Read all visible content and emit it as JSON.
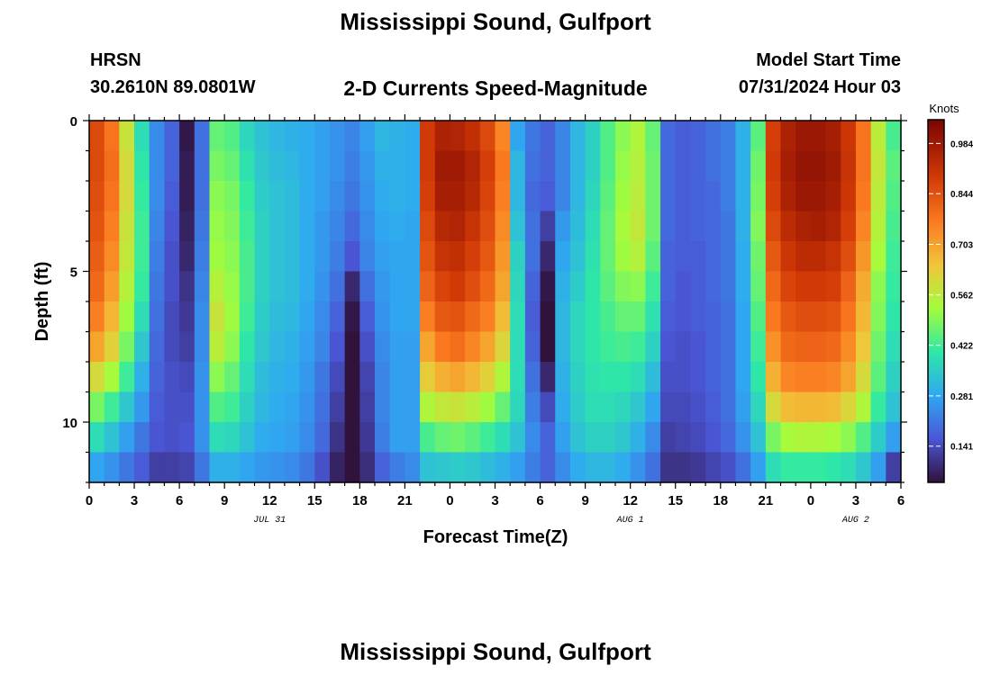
{
  "header": {
    "title": "Mississippi Sound, Gulfport",
    "station": "HRSN",
    "location": "30.2610N  89.0801W",
    "subtitle": "2-D Currents Speed-Magnitude",
    "model_label": "Model Start Time",
    "model_time": "07/31/2024 Hour 03"
  },
  "footer": {
    "title": "Mississippi Sound, Gulfport"
  },
  "chart_data": {
    "type": "heatmap",
    "xlabel": "Forecast Time(Z)",
    "ylabel": "Depth (ft)",
    "x_tick_labels": [
      "0",
      "3",
      "6",
      "9",
      "12",
      "15",
      "18",
      "21",
      "0",
      "3",
      "6",
      "9",
      "12",
      "15",
      "18",
      "21",
      "0",
      "3",
      "6"
    ],
    "x_hours": [
      0,
      54
    ],
    "date_labels": [
      {
        "label": "JUL 31",
        "hour": 12
      },
      {
        "label": "AUG 1",
        "hour": 36
      },
      {
        "label": "AUG 2",
        "hour": 51
      }
    ],
    "y_tick_labels": [
      "0",
      "5",
      "10"
    ],
    "ylim": [
      0,
      12
    ],
    "colorbar": {
      "unit": "Knots",
      "range": [
        0.04,
        1.05
      ],
      "ticks": [
        "0.141",
        "0.281",
        "0.422",
        "0.562",
        "0.703",
        "0.844",
        "0.984"
      ]
    },
    "depths_ft": [
      0.5,
      1.5,
      2.5,
      3.5,
      4.5,
      5.5,
      6.5,
      7.5,
      8.5,
      9.5,
      10.5,
      11.5
    ],
    "time_hours": [
      0.5,
      1.5,
      2.5,
      3.5,
      4.5,
      5.5,
      6.5,
      7.5,
      8.5,
      9.5,
      10.5,
      11.5,
      12.5,
      13.5,
      14.5,
      15.5,
      16.5,
      17.5,
      18.5,
      19.5,
      20.5,
      21.5,
      22.5,
      23.5,
      24.5,
      25.5,
      26.5,
      27.5,
      28.5,
      29.5,
      30.5,
      31.5,
      32.5,
      33.5,
      34.5,
      35.5,
      36.5,
      37.5,
      38.5,
      39.5,
      40.5,
      41.5,
      42.5,
      43.5,
      44.5,
      45.5,
      46.5,
      47.5,
      48.5,
      49.5,
      50.5,
      51.5,
      52.5,
      53.5
    ],
    "speed_knots_by_depth": [
      [
        0.86,
        0.78,
        0.58,
        0.38,
        0.24,
        0.18,
        0.05,
        0.2,
        0.46,
        0.44,
        0.37,
        0.33,
        0.31,
        0.3,
        0.29,
        0.27,
        0.25,
        0.23,
        0.27,
        0.31,
        0.3,
        0.29,
        0.89,
        0.96,
        0.95,
        0.92,
        0.86,
        0.75,
        0.28,
        0.21,
        0.18,
        0.23,
        0.31,
        0.36,
        0.44,
        0.5,
        0.54,
        0.46,
        0.19,
        0.17,
        0.18,
        0.2,
        0.22,
        0.3,
        0.45,
        0.88,
        0.96,
        0.99,
        0.99,
        0.97,
        0.9,
        0.78,
        0.56,
        0.43
      ],
      [
        0.86,
        0.79,
        0.6,
        0.4,
        0.24,
        0.18,
        0.06,
        0.2,
        0.48,
        0.46,
        0.39,
        0.34,
        0.32,
        0.31,
        0.29,
        0.27,
        0.25,
        0.22,
        0.26,
        0.3,
        0.3,
        0.29,
        0.89,
        0.98,
        0.98,
        0.95,
        0.88,
        0.77,
        0.31,
        0.2,
        0.18,
        0.23,
        0.31,
        0.36,
        0.44,
        0.51,
        0.55,
        0.47,
        0.19,
        0.17,
        0.18,
        0.2,
        0.22,
        0.3,
        0.47,
        0.89,
        0.97,
        1.0,
        1.0,
        0.98,
        0.91,
        0.78,
        0.57,
        0.45
      ],
      [
        0.85,
        0.78,
        0.6,
        0.41,
        0.24,
        0.17,
        0.06,
        0.2,
        0.5,
        0.48,
        0.41,
        0.35,
        0.33,
        0.32,
        0.29,
        0.27,
        0.24,
        0.21,
        0.25,
        0.29,
        0.3,
        0.29,
        0.88,
        0.97,
        0.97,
        0.94,
        0.87,
        0.76,
        0.31,
        0.19,
        0.17,
        0.23,
        0.31,
        0.37,
        0.45,
        0.52,
        0.56,
        0.47,
        0.19,
        0.17,
        0.18,
        0.19,
        0.22,
        0.3,
        0.48,
        0.88,
        0.96,
        0.99,
        0.99,
        0.97,
        0.9,
        0.77,
        0.56,
        0.44
      ],
      [
        0.84,
        0.76,
        0.58,
        0.42,
        0.23,
        0.16,
        0.07,
        0.21,
        0.51,
        0.49,
        0.42,
        0.36,
        0.33,
        0.32,
        0.29,
        0.26,
        0.23,
        0.19,
        0.24,
        0.28,
        0.29,
        0.28,
        0.86,
        0.94,
        0.95,
        0.91,
        0.85,
        0.74,
        0.33,
        0.2,
        0.12,
        0.26,
        0.32,
        0.38,
        0.46,
        0.53,
        0.57,
        0.47,
        0.19,
        0.17,
        0.18,
        0.19,
        0.21,
        0.3,
        0.49,
        0.86,
        0.93,
        0.96,
        0.97,
        0.95,
        0.88,
        0.75,
        0.55,
        0.43
      ],
      [
        0.82,
        0.74,
        0.57,
        0.42,
        0.22,
        0.15,
        0.08,
        0.22,
        0.52,
        0.5,
        0.43,
        0.36,
        0.33,
        0.32,
        0.29,
        0.26,
        0.22,
        0.16,
        0.23,
        0.27,
        0.28,
        0.28,
        0.84,
        0.91,
        0.92,
        0.88,
        0.83,
        0.72,
        0.36,
        0.2,
        0.08,
        0.28,
        0.33,
        0.39,
        0.46,
        0.52,
        0.55,
        0.45,
        0.18,
        0.17,
        0.17,
        0.19,
        0.21,
        0.29,
        0.47,
        0.83,
        0.9,
        0.93,
        0.93,
        0.91,
        0.85,
        0.72,
        0.53,
        0.42
      ],
      [
        0.8,
        0.71,
        0.55,
        0.41,
        0.21,
        0.15,
        0.1,
        0.23,
        0.55,
        0.51,
        0.43,
        0.36,
        0.33,
        0.32,
        0.29,
        0.25,
        0.2,
        0.08,
        0.2,
        0.26,
        0.28,
        0.28,
        0.81,
        0.87,
        0.89,
        0.85,
        0.8,
        0.7,
        0.37,
        0.18,
        0.05,
        0.3,
        0.35,
        0.4,
        0.45,
        0.49,
        0.5,
        0.42,
        0.18,
        0.16,
        0.17,
        0.19,
        0.21,
        0.29,
        0.46,
        0.8,
        0.87,
        0.89,
        0.89,
        0.88,
        0.81,
        0.69,
        0.5,
        0.41
      ],
      [
        0.76,
        0.67,
        0.52,
        0.38,
        0.2,
        0.14,
        0.11,
        0.24,
        0.58,
        0.52,
        0.42,
        0.35,
        0.32,
        0.31,
        0.28,
        0.24,
        0.18,
        0.05,
        0.17,
        0.25,
        0.28,
        0.28,
        0.76,
        0.83,
        0.84,
        0.8,
        0.76,
        0.66,
        0.38,
        0.17,
        0.03,
        0.31,
        0.37,
        0.4,
        0.43,
        0.46,
        0.46,
        0.39,
        0.17,
        0.16,
        0.17,
        0.18,
        0.2,
        0.28,
        0.44,
        0.77,
        0.83,
        0.85,
        0.85,
        0.84,
        0.78,
        0.67,
        0.49,
        0.4
      ],
      [
        0.7,
        0.62,
        0.48,
        0.34,
        0.19,
        0.14,
        0.12,
        0.24,
        0.56,
        0.5,
        0.4,
        0.34,
        0.31,
        0.3,
        0.27,
        0.23,
        0.16,
        0.04,
        0.15,
        0.24,
        0.27,
        0.27,
        0.7,
        0.77,
        0.79,
        0.75,
        0.7,
        0.61,
        0.38,
        0.18,
        0.04,
        0.31,
        0.37,
        0.4,
        0.42,
        0.43,
        0.42,
        0.36,
        0.16,
        0.15,
        0.16,
        0.18,
        0.2,
        0.28,
        0.42,
        0.73,
        0.8,
        0.81,
        0.81,
        0.8,
        0.74,
        0.64,
        0.47,
        0.38
      ],
      [
        0.6,
        0.53,
        0.42,
        0.3,
        0.18,
        0.15,
        0.14,
        0.25,
        0.5,
        0.46,
        0.38,
        0.32,
        0.3,
        0.29,
        0.26,
        0.21,
        0.14,
        0.04,
        0.13,
        0.23,
        0.27,
        0.27,
        0.63,
        0.68,
        0.7,
        0.67,
        0.62,
        0.54,
        0.38,
        0.2,
        0.08,
        0.3,
        0.36,
        0.39,
        0.4,
        0.4,
        0.38,
        0.32,
        0.15,
        0.15,
        0.16,
        0.18,
        0.2,
        0.28,
        0.4,
        0.68,
        0.75,
        0.76,
        0.76,
        0.75,
        0.7,
        0.6,
        0.45,
        0.36
      ],
      [
        0.48,
        0.42,
        0.34,
        0.26,
        0.17,
        0.15,
        0.15,
        0.25,
        0.44,
        0.42,
        0.36,
        0.31,
        0.29,
        0.28,
        0.25,
        0.2,
        0.12,
        0.04,
        0.12,
        0.23,
        0.27,
        0.27,
        0.54,
        0.57,
        0.58,
        0.56,
        0.52,
        0.46,
        0.37,
        0.22,
        0.14,
        0.29,
        0.35,
        0.38,
        0.38,
        0.37,
        0.34,
        0.28,
        0.14,
        0.14,
        0.15,
        0.17,
        0.2,
        0.27,
        0.37,
        0.6,
        0.66,
        0.67,
        0.67,
        0.66,
        0.61,
        0.54,
        0.41,
        0.33
      ],
      [
        0.38,
        0.33,
        0.27,
        0.21,
        0.16,
        0.15,
        0.16,
        0.25,
        0.38,
        0.37,
        0.33,
        0.29,
        0.28,
        0.27,
        0.24,
        0.19,
        0.1,
        0.04,
        0.11,
        0.22,
        0.27,
        0.27,
        0.43,
        0.46,
        0.47,
        0.45,
        0.42,
        0.38,
        0.33,
        0.24,
        0.18,
        0.27,
        0.33,
        0.36,
        0.36,
        0.34,
        0.3,
        0.24,
        0.12,
        0.13,
        0.14,
        0.16,
        0.19,
        0.25,
        0.33,
        0.48,
        0.53,
        0.54,
        0.54,
        0.53,
        0.5,
        0.44,
        0.35,
        0.27
      ],
      [
        0.28,
        0.25,
        0.21,
        0.17,
        0.12,
        0.12,
        0.13,
        0.21,
        0.3,
        0.3,
        0.28,
        0.26,
        0.25,
        0.24,
        0.21,
        0.15,
        0.07,
        0.03,
        0.09,
        0.18,
        0.22,
        0.24,
        0.33,
        0.34,
        0.35,
        0.34,
        0.32,
        0.3,
        0.27,
        0.22,
        0.18,
        0.24,
        0.29,
        0.31,
        0.31,
        0.29,
        0.25,
        0.2,
        0.1,
        0.1,
        0.11,
        0.13,
        0.15,
        0.2,
        0.27,
        0.38,
        0.41,
        0.41,
        0.41,
        0.4,
        0.38,
        0.34,
        0.27,
        0.12
      ]
    ]
  }
}
